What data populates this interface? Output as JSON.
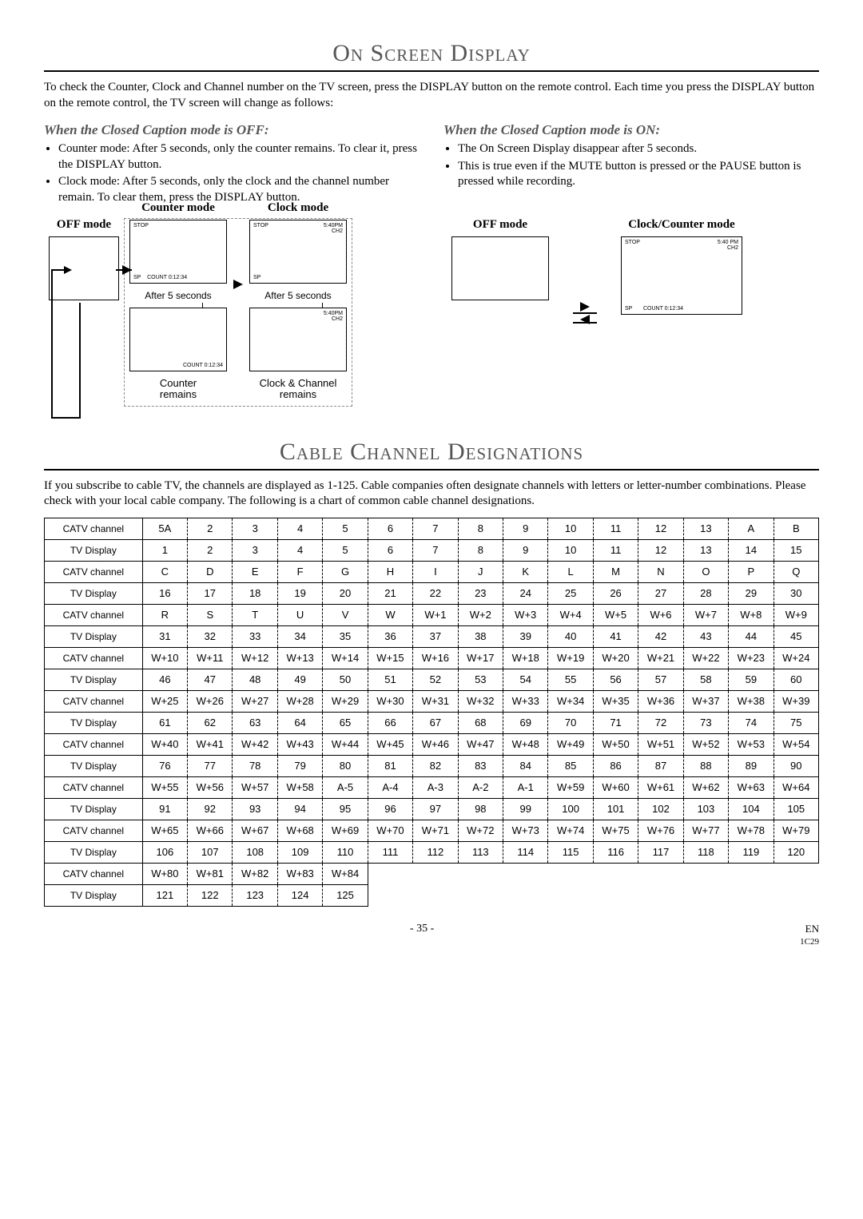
{
  "section1": {
    "title": "On Screen Display",
    "intro": "To check the Counter, Clock and Channel number on the TV screen, press the DISPLAY button on the remote control. Each time you press the DISPLAY button on the remote control, the TV screen will change as follows:",
    "off": {
      "heading": "When the Closed Caption mode is OFF:",
      "bullets": [
        "Counter mode: After 5 seconds, only the counter remains. To clear it, press the DISPLAY button.",
        "Clock mode: After 5 seconds, only the clock and the channel number remain. To clear them, press the DISPLAY button."
      ],
      "labels": {
        "off": "OFF mode",
        "counter": "Counter mode",
        "clock": "Clock mode"
      },
      "tv": {
        "stop": "STOP",
        "sp": "SP",
        "count": "COUNT  0:12:34",
        "time": "5:40PM",
        "ch": "CH2",
        "after5": "After 5 seconds",
        "counter_remains": "Counter\nremains",
        "clock_remains": "Clock & Channel\nremains"
      }
    },
    "on": {
      "heading": "When the Closed Caption mode is ON:",
      "bullets": [
        "The On Screen Display disappear after 5 seconds.",
        "This is true even if the MUTE button is pressed or the PAUSE button is pressed while recording."
      ],
      "labels": {
        "off": "OFF mode",
        "clockcounter": "Clock/Counter mode"
      },
      "tv": {
        "stop": "STOP",
        "sp": "SP",
        "count": "COUNT  0:12:34",
        "time": "5:40 PM",
        "ch": "CH2"
      }
    }
  },
  "section2": {
    "title": "Cable Channel Designations",
    "intro": "If you subscribe to cable TV, the channels are displayed as 1-125. Cable companies often designate channels with letters or letter-number combinations. Please check with your local cable company. The following is a chart of common cable channel designations.",
    "rowlabels": {
      "catv": "CATV channel",
      "tv": "TV Display"
    },
    "rows": [
      {
        "catv": [
          "5A",
          "2",
          "3",
          "4",
          "5",
          "6",
          "7",
          "8",
          "9",
          "10",
          "11",
          "12",
          "13",
          "A",
          "B"
        ],
        "tv": [
          "1",
          "2",
          "3",
          "4",
          "5",
          "6",
          "7",
          "8",
          "9",
          "10",
          "11",
          "12",
          "13",
          "14",
          "15"
        ]
      },
      {
        "catv": [
          "C",
          "D",
          "E",
          "F",
          "G",
          "H",
          "I",
          "J",
          "K",
          "L",
          "M",
          "N",
          "O",
          "P",
          "Q"
        ],
        "tv": [
          "16",
          "17",
          "18",
          "19",
          "20",
          "21",
          "22",
          "23",
          "24",
          "25",
          "26",
          "27",
          "28",
          "29",
          "30"
        ]
      },
      {
        "catv": [
          "R",
          "S",
          "T",
          "U",
          "V",
          "W",
          "W+1",
          "W+2",
          "W+3",
          "W+4",
          "W+5",
          "W+6",
          "W+7",
          "W+8",
          "W+9"
        ],
        "tv": [
          "31",
          "32",
          "33",
          "34",
          "35",
          "36",
          "37",
          "38",
          "39",
          "40",
          "41",
          "42",
          "43",
          "44",
          "45"
        ]
      },
      {
        "catv": [
          "W+10",
          "W+11",
          "W+12",
          "W+13",
          "W+14",
          "W+15",
          "W+16",
          "W+17",
          "W+18",
          "W+19",
          "W+20",
          "W+21",
          "W+22",
          "W+23",
          "W+24"
        ],
        "tv": [
          "46",
          "47",
          "48",
          "49",
          "50",
          "51",
          "52",
          "53",
          "54",
          "55",
          "56",
          "57",
          "58",
          "59",
          "60"
        ]
      },
      {
        "catv": [
          "W+25",
          "W+26",
          "W+27",
          "W+28",
          "W+29",
          "W+30",
          "W+31",
          "W+32",
          "W+33",
          "W+34",
          "W+35",
          "W+36",
          "W+37",
          "W+38",
          "W+39"
        ],
        "tv": [
          "61",
          "62",
          "63",
          "64",
          "65",
          "66",
          "67",
          "68",
          "69",
          "70",
          "71",
          "72",
          "73",
          "74",
          "75"
        ]
      },
      {
        "catv": [
          "W+40",
          "W+41",
          "W+42",
          "W+43",
          "W+44",
          "W+45",
          "W+46",
          "W+47",
          "W+48",
          "W+49",
          "W+50",
          "W+51",
          "W+52",
          "W+53",
          "W+54"
        ],
        "tv": [
          "76",
          "77",
          "78",
          "79",
          "80",
          "81",
          "82",
          "83",
          "84",
          "85",
          "86",
          "87",
          "88",
          "89",
          "90"
        ]
      },
      {
        "catv": [
          "W+55",
          "W+56",
          "W+57",
          "W+58",
          "A-5",
          "A-4",
          "A-3",
          "A-2",
          "A-1",
          "W+59",
          "W+60",
          "W+61",
          "W+62",
          "W+63",
          "W+64"
        ],
        "tv": [
          "91",
          "92",
          "93",
          "94",
          "95",
          "96",
          "97",
          "98",
          "99",
          "100",
          "101",
          "102",
          "103",
          "104",
          "105"
        ]
      },
      {
        "catv": [
          "W+65",
          "W+66",
          "W+67",
          "W+68",
          "W+69",
          "W+70",
          "W+71",
          "W+72",
          "W+73",
          "W+74",
          "W+75",
          "W+76",
          "W+77",
          "W+78",
          "W+79"
        ],
        "tv": [
          "106",
          "107",
          "108",
          "109",
          "110",
          "111",
          "112",
          "113",
          "114",
          "115",
          "116",
          "117",
          "118",
          "119",
          "120"
        ]
      },
      {
        "catv": [
          "W+80",
          "W+81",
          "W+82",
          "W+83",
          "W+84"
        ],
        "tv": [
          "121",
          "122",
          "123",
          "124",
          "125"
        ]
      }
    ]
  },
  "footer": {
    "page": "- 35 -",
    "en": "EN",
    "code": "1C29"
  },
  "colors": {
    "title": "#555555",
    "text": "#000000",
    "dash": "#888888"
  }
}
